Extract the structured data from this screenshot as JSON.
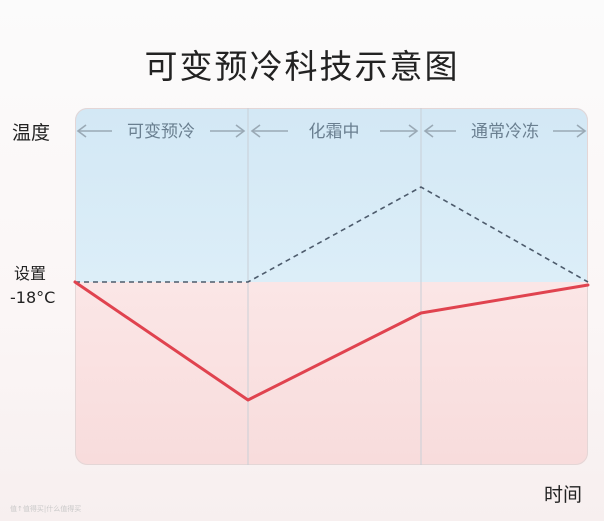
{
  "title": "可变预冷科技示意图",
  "y_axis_label": "温度",
  "x_axis_label": "时间",
  "setpoint": {
    "line1": "设置",
    "line2": "-18°C"
  },
  "phases": [
    {
      "label": "可变预冷"
    },
    {
      "label": "化霜中"
    },
    {
      "label": "通常冷冻"
    }
  ],
  "colors": {
    "cold_zone": "#d8ecf7",
    "warm_zone": "#fae3e3",
    "solid_line": "#e0434f",
    "dashed_line": "#4d5b6c",
    "arrow": "#9aa9b5"
  },
  "watermark": "值↑值得买|什么值得买"
}
